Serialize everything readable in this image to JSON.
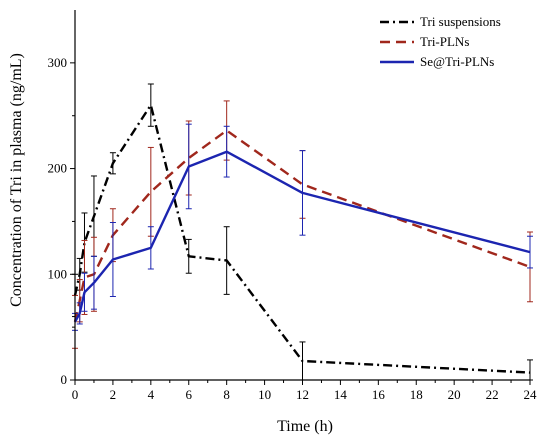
{
  "chart_data": {
    "type": "line",
    "title": "",
    "xlabel": "Time (h)",
    "ylabel": "Concentration of Tri in plasma (ng/mL)",
    "xlim": [
      0,
      24
    ],
    "ylim": [
      0,
      350
    ],
    "x_ticks": [
      0,
      2,
      4,
      6,
      8,
      10,
      12,
      14,
      16,
      18,
      20,
      22,
      24
    ],
    "y_ticks": [
      0,
      100,
      200,
      300
    ],
    "grid": false,
    "legend_position": "top-right",
    "series": [
      {
        "name": "Tri suspensions",
        "color": "#000000",
        "line_style": "dash-dot",
        "points": [
          {
            "x": 0,
            "y": 80,
            "err": 20
          },
          {
            "x": 0.25,
            "y": 100,
            "err": 15
          },
          {
            "x": 0.5,
            "y": 130,
            "err": 28
          },
          {
            "x": 1,
            "y": 155,
            "err": 38
          },
          {
            "x": 2,
            "y": 205,
            "err": 10
          },
          {
            "x": 4,
            "y": 260,
            "err": 20
          },
          {
            "x": 6,
            "y": 117,
            "err": 16
          },
          {
            "x": 8,
            "y": 113,
            "err": 32
          },
          {
            "x": 12,
            "y": 18,
            "err": 18
          },
          {
            "x": 24,
            "y": 7,
            "err": 12
          }
        ]
      },
      {
        "name": "Tri-PLNs",
        "color": "#a0271c",
        "line_style": "dashed",
        "points": [
          {
            "x": 0,
            "y": 55,
            "err": 25
          },
          {
            "x": 0.25,
            "y": 75,
            "err": 20
          },
          {
            "x": 0.5,
            "y": 97,
            "err": 35
          },
          {
            "x": 1,
            "y": 100,
            "err": 35
          },
          {
            "x": 2,
            "y": 137,
            "err": 25
          },
          {
            "x": 4,
            "y": 178,
            "err": 42
          },
          {
            "x": 6,
            "y": 210,
            "err": 35
          },
          {
            "x": 8,
            "y": 236,
            "err": 28
          },
          {
            "x": 12,
            "y": 185,
            "err": 32
          },
          {
            "x": 24,
            "y": 107,
            "err": 33
          }
        ]
      },
      {
        "name": "Se@Tri-PLNs",
        "color": "#1c25b0",
        "line_style": "solid",
        "points": [
          {
            "x": 0,
            "y": 55,
            "err": 8
          },
          {
            "x": 0.25,
            "y": 63,
            "err": 10
          },
          {
            "x": 0.5,
            "y": 83,
            "err": 18
          },
          {
            "x": 1,
            "y": 92,
            "err": 25
          },
          {
            "x": 2,
            "y": 114,
            "err": 35
          },
          {
            "x": 4,
            "y": 125,
            "err": 20
          },
          {
            "x": 6,
            "y": 202,
            "err": 40
          },
          {
            "x": 8,
            "y": 216,
            "err": 24
          },
          {
            "x": 12,
            "y": 177,
            "err": 40
          },
          {
            "x": 24,
            "y": 121,
            "err": 15
          }
        ]
      }
    ]
  }
}
